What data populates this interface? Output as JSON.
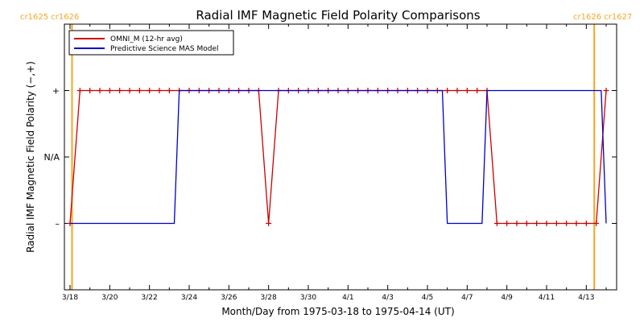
{
  "chart_data": {
    "type": "line",
    "title": "Radial IMF Magnetic Field Polarity Comparisons",
    "xlabel": "Month/Day from 1975-03-18 to 1975-04-14 (UT)",
    "ylabel": "Radial IMF Magnetic Field Polarity (−,+)",
    "x_tick_labels": [
      "3/18",
      "3/20",
      "3/22",
      "3/24",
      "3/26",
      "3/28",
      "3/30",
      "4/1",
      "4/3",
      "4/5",
      "4/7",
      "4/9",
      "4/11",
      "4/13"
    ],
    "x_tick_days": [
      0,
      2,
      4,
      6,
      8,
      10,
      12,
      14,
      16,
      18,
      20,
      22,
      24,
      26
    ],
    "xlim": [
      0,
      27
    ],
    "y_tick_labels": [
      "+",
      "N/A",
      "–"
    ],
    "y_tick_values": [
      1,
      0,
      -1
    ],
    "ylim": [
      -2,
      2
    ],
    "grid": false,
    "legend_position": "top-left",
    "carrington_markers": [
      {
        "day": 0.1,
        "label": "cr1625 cr1626",
        "color": "#f5a623"
      },
      {
        "day": 26.4,
        "label": "cr1626 cr1627",
        "color": "#f5a623"
      }
    ],
    "series": [
      {
        "name": "OMNI_M (12-hr avg)",
        "color": "#cc0000",
        "marker": "+",
        "points": [
          [
            0.0,
            -1
          ],
          [
            0.5,
            1
          ],
          [
            1.0,
            1
          ],
          [
            1.5,
            1
          ],
          [
            2.0,
            1
          ],
          [
            2.5,
            1
          ],
          [
            3.0,
            1
          ],
          [
            3.5,
            1
          ],
          [
            4.0,
            1
          ],
          [
            4.5,
            1
          ],
          [
            5.0,
            1
          ],
          [
            5.5,
            1
          ],
          [
            6.0,
            1
          ],
          [
            6.5,
            1
          ],
          [
            7.0,
            1
          ],
          [
            7.5,
            1
          ],
          [
            8.0,
            1
          ],
          [
            8.5,
            1
          ],
          [
            9.0,
            1
          ],
          [
            9.5,
            1
          ],
          [
            10.0,
            -1
          ],
          [
            10.5,
            1
          ],
          [
            11.0,
            1
          ],
          [
            11.5,
            1
          ],
          [
            12.0,
            1
          ],
          [
            12.5,
            1
          ],
          [
            13.0,
            1
          ],
          [
            13.5,
            1
          ],
          [
            14.0,
            1
          ],
          [
            14.5,
            1
          ],
          [
            15.0,
            1
          ],
          [
            15.5,
            1
          ],
          [
            16.0,
            1
          ],
          [
            16.5,
            1
          ],
          [
            17.0,
            1
          ],
          [
            17.5,
            1
          ],
          [
            18.0,
            1
          ],
          [
            18.5,
            1
          ],
          [
            19.0,
            1
          ],
          [
            19.5,
            1
          ],
          [
            20.0,
            1
          ],
          [
            20.5,
            1
          ],
          [
            21.0,
            1
          ],
          [
            21.5,
            -1
          ],
          [
            22.0,
            -1
          ],
          [
            22.5,
            -1
          ],
          [
            23.0,
            -1
          ],
          [
            23.5,
            -1
          ],
          [
            24.0,
            -1
          ],
          [
            24.5,
            -1
          ],
          [
            25.0,
            -1
          ],
          [
            25.5,
            -1
          ],
          [
            26.0,
            -1
          ],
          [
            26.5,
            -1
          ],
          [
            27.0,
            1
          ]
        ]
      },
      {
        "name": "Predictive Science MAS Model",
        "color": "#0000cc",
        "points": [
          [
            0.0,
            -1
          ],
          [
            5.25,
            -1
          ],
          [
            5.5,
            1
          ],
          [
            18.75,
            1
          ],
          [
            19.0,
            -1
          ],
          [
            20.75,
            -1
          ],
          [
            21.0,
            1
          ],
          [
            26.75,
            1
          ],
          [
            27.0,
            -1
          ]
        ]
      }
    ]
  }
}
